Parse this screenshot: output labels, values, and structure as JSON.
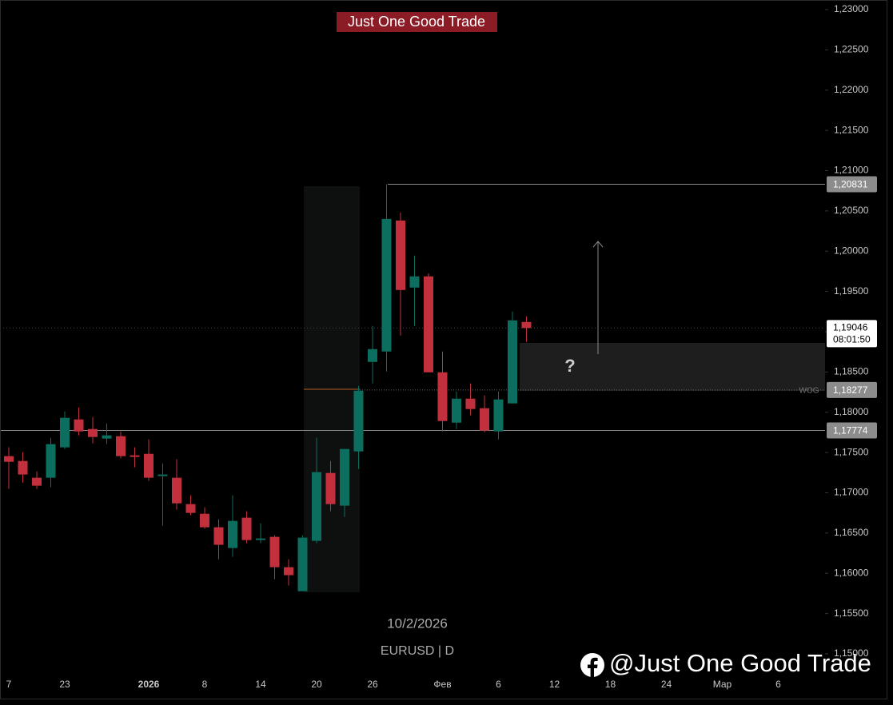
{
  "chart_data": {
    "type": "candlestick",
    "title": "Just One Good Trade",
    "symbol": "EURUSD | D",
    "date_label": "10/2/2026",
    "watermark": "@Just One Good Trade",
    "question": "?",
    "zone_label": "WOG",
    "up_color": "#0c6e5e",
    "down_color": "#c2303e",
    "categories": [
      "7",
      null,
      null,
      null,
      "23",
      null,
      null,
      null,
      null,
      null,
      "2026",
      null,
      null,
      null,
      "8",
      null,
      null,
      null,
      "14",
      null,
      null,
      null,
      "20",
      null,
      null,
      null,
      "26",
      null,
      null,
      null,
      null,
      "Фев",
      null,
      null,
      null,
      "6",
      null,
      null,
      null,
      "12",
      null,
      null,
      null,
      "18",
      null,
      null,
      null,
      "24",
      null,
      null,
      null,
      "Мар",
      null,
      null,
      null,
      "6"
    ],
    "open": [
      1.17455,
      1.17395,
      1.17187,
      1.17187,
      1.17564,
      1.17911,
      1.17792,
      1.17673,
      1.17703,
      1.17465,
      1.17484,
      1.17207,
      1.17187,
      1.16859,
      1.1674,
      1.16572,
      1.16314,
      1.16691,
      1.16413,
      1.16453,
      1.16076,
      1.15778,
      1.16403,
      1.17246,
      1.1684,
      1.17514,
      1.18625,
      1.18754,
      1.20381,
      1.19548,
      1.19687,
      1.18496,
      1.17871,
      1.18169,
      1.1805,
      1.17762,
      1.1811,
      1.19121,
      null,
      null,
      null,
      null,
      null,
      null,
      null,
      null,
      null,
      null,
      null,
      null,
      null,
      null,
      null,
      null,
      null,
      null
    ],
    "high": [
      1.17564,
      1.17504,
      1.17266,
      1.17683,
      1.1801,
      1.1806,
      1.17941,
      1.17861,
      1.17762,
      1.17564,
      1.17663,
      1.17365,
      1.17415,
      1.16969,
      1.1682,
      1.16671,
      1.16969,
      1.1677,
      1.16621,
      1.16473,
      1.16175,
      1.16473,
      1.17683,
      1.17395,
      1.17544,
      1.18328,
      1.19072,
      1.20831,
      1.2048,
      1.19945,
      1.19726,
      1.18754,
      1.18258,
      1.18357,
      1.18208,
      1.18258,
      1.1925,
      1.19191,
      null,
      null,
      null,
      null,
      null,
      null,
      null,
      null,
      null,
      null,
      null,
      null,
      null,
      null,
      null,
      null,
      null,
      null
    ],
    "low": [
      1.17048,
      1.17127,
      1.17048,
      1.17068,
      1.17544,
      1.17713,
      1.17613,
      1.17604,
      1.17425,
      1.17316,
      1.17147,
      1.16592,
      1.1679,
      1.16721,
      1.16552,
      1.16175,
      1.16205,
      1.16373,
      1.16373,
      1.15927,
      1.15848,
      1.15778,
      1.16373,
      1.1677,
      1.16701,
      1.17296,
      1.18357,
      1.18506,
      1.18953,
      1.19072,
      1.18496,
      1.17762,
      1.17792,
      1.17961,
      1.17752,
      1.17663,
      1.1811,
      1.18873,
      null,
      null,
      null,
      null,
      null,
      null,
      null,
      null,
      null,
      null,
      null,
      null,
      null,
      null,
      null,
      null,
      null,
      null
    ],
    "close": [
      1.17385,
      1.17227,
      1.17088,
      1.17604,
      1.17931,
      1.17762,
      1.17693,
      1.17713,
      1.17455,
      1.17445,
      1.17187,
      1.17227,
      1.16869,
      1.1675,
      1.16572,
      1.16354,
      1.16651,
      1.16413,
      1.16433,
      1.16076,
      1.15977,
      1.16443,
      1.17256,
      1.16859,
      1.17544,
      1.18268,
      1.18784,
      1.20401,
      1.19518,
      1.19687,
      1.18496,
      1.17891,
      1.18169,
      1.1804,
      1.17772,
      1.18159,
      1.19141,
      1.19046,
      null,
      null,
      null,
      null,
      null,
      null,
      null,
      null,
      null,
      null,
      null,
      null,
      null,
      null,
      null,
      null,
      null,
      null
    ],
    "ylim": [
      1.14732,
      1.23119
    ],
    "yticks": [
      {
        "value": 1.15,
        "label": "1,15000"
      },
      {
        "value": 1.155,
        "label": "1,15500"
      },
      {
        "value": 1.16,
        "label": "1,16000"
      },
      {
        "value": 1.165,
        "label": "1,16500"
      },
      {
        "value": 1.17,
        "label": "1,17000"
      },
      {
        "value": 1.175,
        "label": "1,17500"
      },
      {
        "value": 1.18,
        "label": "1,18000"
      },
      {
        "value": 1.185,
        "label": "1,18500"
      },
      {
        "value": 1.19,
        "label": "1,19000"
      },
      {
        "value": 1.195,
        "label": "1,19500"
      },
      {
        "value": 1.2,
        "label": "1,20000"
      },
      {
        "value": 1.205,
        "label": "1,20500"
      },
      {
        "value": 1.21,
        "label": "1,21000"
      },
      {
        "value": 1.215,
        "label": "1,21500"
      },
      {
        "value": 1.22,
        "label": "1,22000"
      },
      {
        "value": 1.225,
        "label": "1,22500"
      },
      {
        "value": 1.23,
        "label": "1,23000"
      }
    ],
    "levels": [
      {
        "value": 1.20831,
        "label": "1,20831"
      },
      {
        "value": 1.18277,
        "label": "1,18277"
      },
      {
        "value": 1.17774,
        "label": "1,17774"
      }
    ],
    "current_price": {
      "value": 1.19046,
      "label": "1,19046",
      "countdown": "08:01:50"
    }
  }
}
